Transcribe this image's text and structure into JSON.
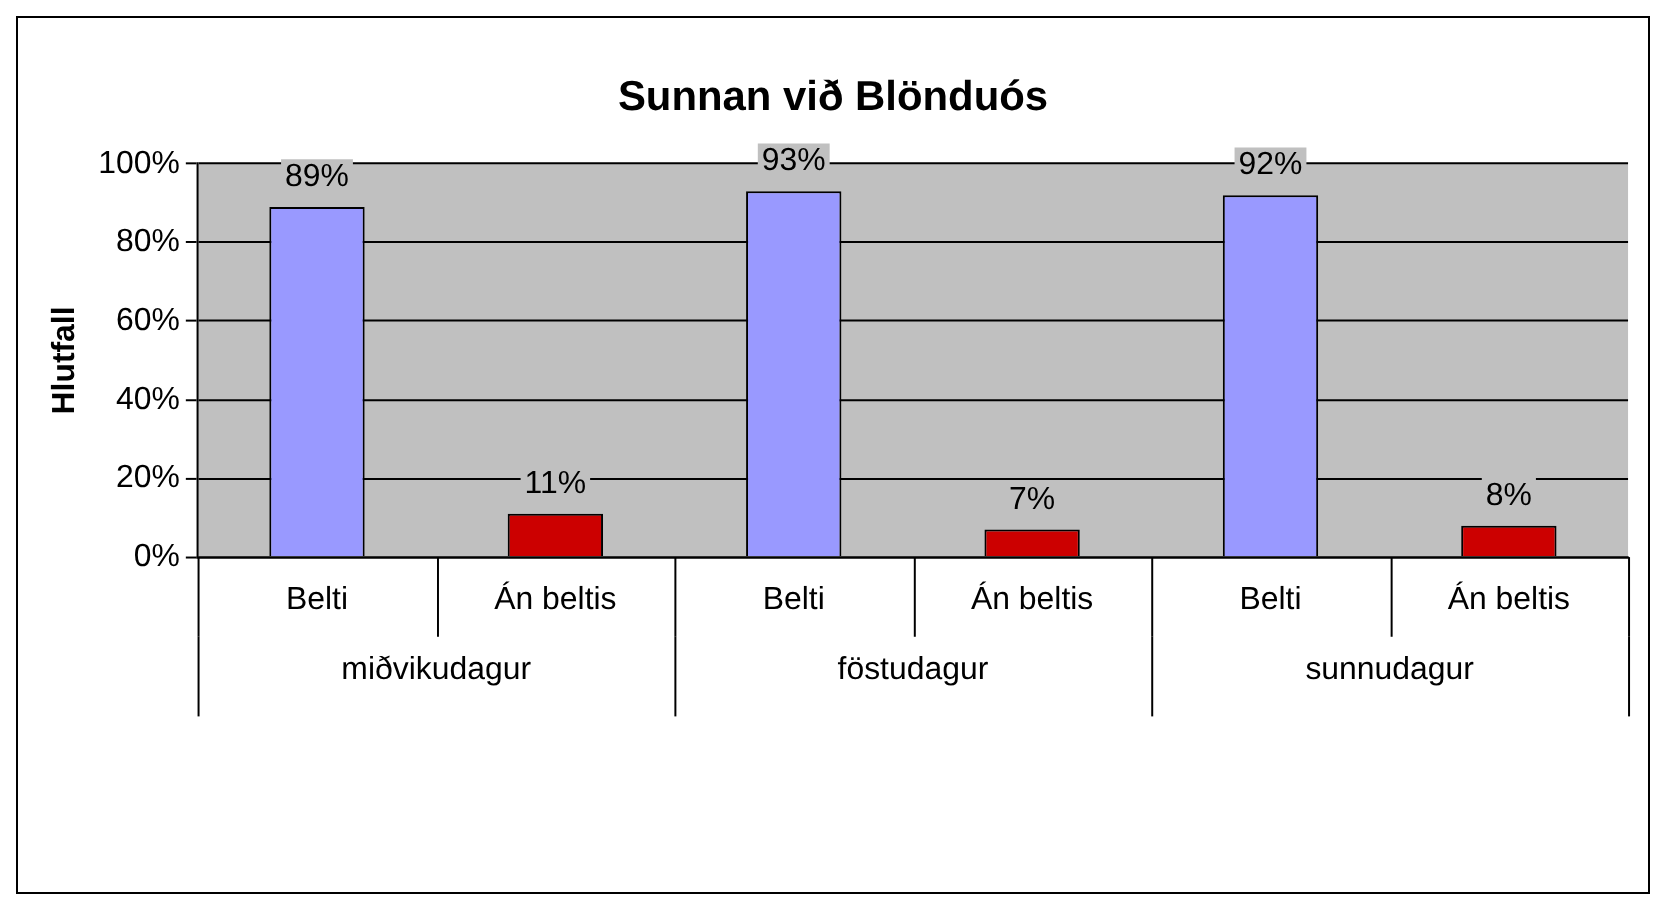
{
  "chart_data": {
    "type": "bar",
    "title": "Sunnan við Blönduós",
    "ylabel": "Hlutfall",
    "categories": [
      "Belti",
      "Án beltis",
      "Belti",
      "Án beltis",
      "Belti",
      "Án beltis"
    ],
    "values": [
      89,
      11,
      93,
      7,
      92,
      8
    ],
    "colors": [
      "#9999ff",
      "#cc0000",
      "#9999ff",
      "#cc0000",
      "#9999ff",
      "#cc0000"
    ],
    "value_labels": [
      "89%",
      "11%",
      "93%",
      "7%",
      "92%",
      "8%"
    ],
    "annotations": [
      "miðvikudagur",
      "föstudagur",
      "sunnudagur"
    ],
    "ylim": [
      0,
      100
    ],
    "yticks": [
      {
        "value": 0,
        "label": "0%"
      },
      {
        "value": 20,
        "label": "20%"
      },
      {
        "value": 40,
        "label": "40%"
      },
      {
        "value": 60,
        "label": "60%"
      },
      {
        "value": 80,
        "label": "80%"
      },
      {
        "value": 100,
        "label": "100%"
      }
    ],
    "grid": "y",
    "legend": false
  }
}
